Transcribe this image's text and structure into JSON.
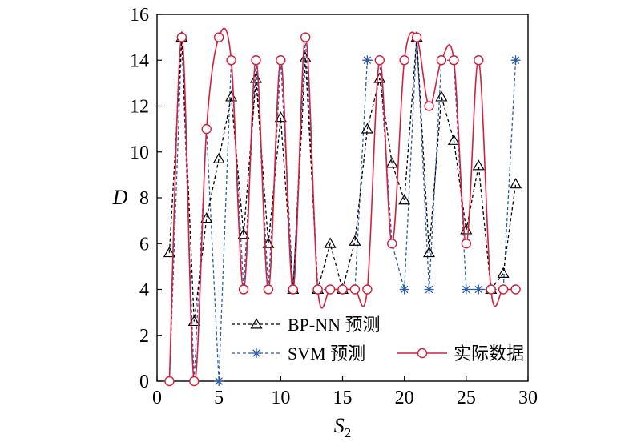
{
  "chart_data": {
    "type": "line",
    "title": "",
    "xlabel": "S",
    "xlabel_sub": "2",
    "ylabel": "D",
    "xlim": [
      0,
      30
    ],
    "ylim": [
      0,
      16
    ],
    "xticks": [
      0,
      5,
      10,
      15,
      20,
      25,
      30
    ],
    "yticks": [
      0,
      2,
      4,
      6,
      8,
      10,
      12,
      14,
      16
    ],
    "grid": false,
    "legend_position": "bottom-center",
    "x": [
      1,
      2,
      3,
      4,
      5,
      6,
      7,
      8,
      9,
      10,
      11,
      12,
      13,
      14,
      15,
      16,
      17,
      18,
      19,
      20,
      21,
      22,
      23,
      24,
      25,
      26,
      27,
      28,
      29
    ],
    "series": [
      {
        "name": "BP-NN 预测",
        "color": "#000000",
        "line_style": "dashed",
        "marker": "triangle",
        "values": [
          5.6,
          15,
          2.6,
          7.1,
          9.7,
          12.4,
          6.4,
          13.2,
          6,
          11.5,
          4,
          14.1,
          4,
          6,
          4,
          6.1,
          11,
          13.2,
          9.5,
          7.9,
          15,
          5.6,
          12.4,
          10.5,
          6.6,
          9.4,
          4,
          4.7,
          8.6
        ]
      },
      {
        "name": "SVM 预测",
        "color": "#2a5ca8",
        "line_style": "dashed",
        "marker": "asterisk",
        "values": [
          0,
          15,
          0,
          11,
          0,
          14,
          4,
          14,
          4,
          14,
          4,
          15,
          4,
          4,
          4,
          4,
          14,
          14,
          6,
          4,
          15,
          4,
          14,
          14,
          4,
          4,
          4,
          4,
          14
        ]
      },
      {
        "name": "实际数据",
        "color": "#d61f3c",
        "line_style": "solid",
        "marker": "circle",
        "values": [
          0,
          15,
          0,
          11,
          15,
          14,
          4,
          14,
          4,
          14,
          4,
          15,
          4,
          4,
          4,
          4,
          4,
          14,
          6,
          14,
          15,
          12,
          14,
          14,
          6,
          14,
          4,
          4,
          4
        ]
      }
    ]
  }
}
